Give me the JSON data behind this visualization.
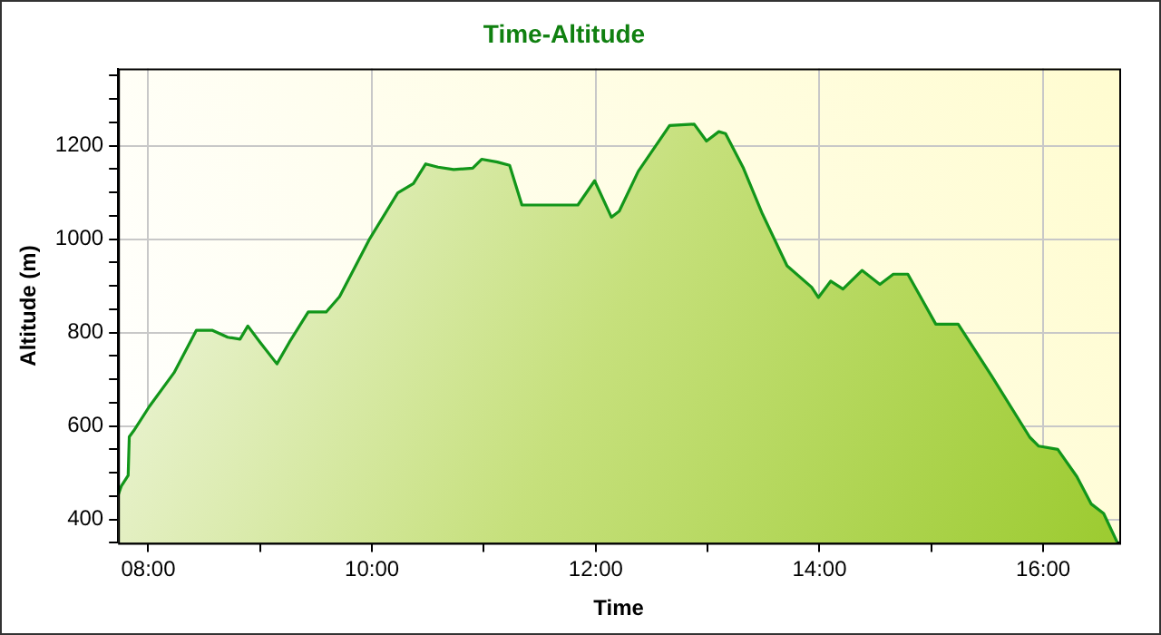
{
  "chart_data": {
    "type": "area",
    "title": "Time-Altitude",
    "xlabel": "Time",
    "ylabel": "Altitude (m)",
    "xlim": [
      7.73,
      16.68
    ],
    "xticks": [
      {
        "value": 8,
        "label": "08:00"
      },
      {
        "value": 9,
        "label": null
      },
      {
        "value": 10,
        "label": "10:00"
      },
      {
        "value": 11,
        "label": null
      },
      {
        "value": 12,
        "label": "12:00"
      },
      {
        "value": 13,
        "label": null
      },
      {
        "value": 14,
        "label": "14:00"
      },
      {
        "value": 15,
        "label": null
      },
      {
        "value": 16,
        "label": "16:00"
      }
    ],
    "ylim": [
      350,
      1365
    ],
    "yticks": [
      {
        "value": 350,
        "label": null
      },
      400,
      {
        "value": 450,
        "label": null
      },
      {
        "value": 500,
        "label": null
      },
      {
        "value": 550,
        "label": null
      },
      600,
      {
        "value": 650,
        "label": null
      },
      {
        "value": 700,
        "label": null
      },
      {
        "value": 750,
        "label": null
      },
      800,
      {
        "value": 850,
        "label": null
      },
      {
        "value": 900,
        "label": null
      },
      {
        "value": 950,
        "label": null
      },
      1000,
      {
        "value": 1050,
        "label": null
      },
      {
        "value": 1100,
        "label": null
      },
      {
        "value": 1150,
        "label": null
      },
      1200,
      {
        "value": 1250,
        "label": null
      },
      {
        "value": 1300,
        "label": null
      },
      {
        "value": 1350,
        "label": null
      }
    ],
    "grid": true,
    "legend": false,
    "marker": "none",
    "line_style": "solid",
    "series": [
      {
        "color": "#12961a",
        "x": [
          7.73,
          7.76,
          7.82,
          7.83,
          7.87,
          8.01,
          8.23,
          8.43,
          8.57,
          8.71,
          8.82,
          8.89,
          9.0,
          9.15,
          9.26,
          9.43,
          9.59,
          9.71,
          9.98,
          10.23,
          10.37,
          10.48,
          10.59,
          10.73,
          10.9,
          10.98,
          11.12,
          11.23,
          11.34,
          11.84,
          11.99,
          12.14,
          12.21,
          12.38,
          12.66,
          12.88,
          12.99,
          13.1,
          13.16,
          13.32,
          13.49,
          13.71,
          13.93,
          13.99,
          14.1,
          14.21,
          14.38,
          14.54,
          14.66,
          14.79,
          15.04,
          15.24,
          15.54,
          15.88,
          15.96,
          16.13,
          16.3,
          16.43,
          16.54,
          16.66
        ],
        "values": [
          452,
          472,
          494,
          577,
          590,
          642,
          714,
          805,
          805,
          790,
          786,
          814,
          779,
          733,
          779,
          844,
          844,
          877,
          1001,
          1099,
          1119,
          1161,
          1154,
          1149,
          1152,
          1171,
          1165,
          1158,
          1073,
          1073,
          1125,
          1047,
          1060,
          1145,
          1243,
          1246,
          1210,
          1230,
          1226,
          1152,
          1054,
          943,
          897,
          875,
          910,
          893,
          933,
          903,
          925,
          925,
          818,
          818,
          707,
          576,
          557,
          550,
          492,
          433,
          413,
          352
        ]
      }
    ]
  }
}
